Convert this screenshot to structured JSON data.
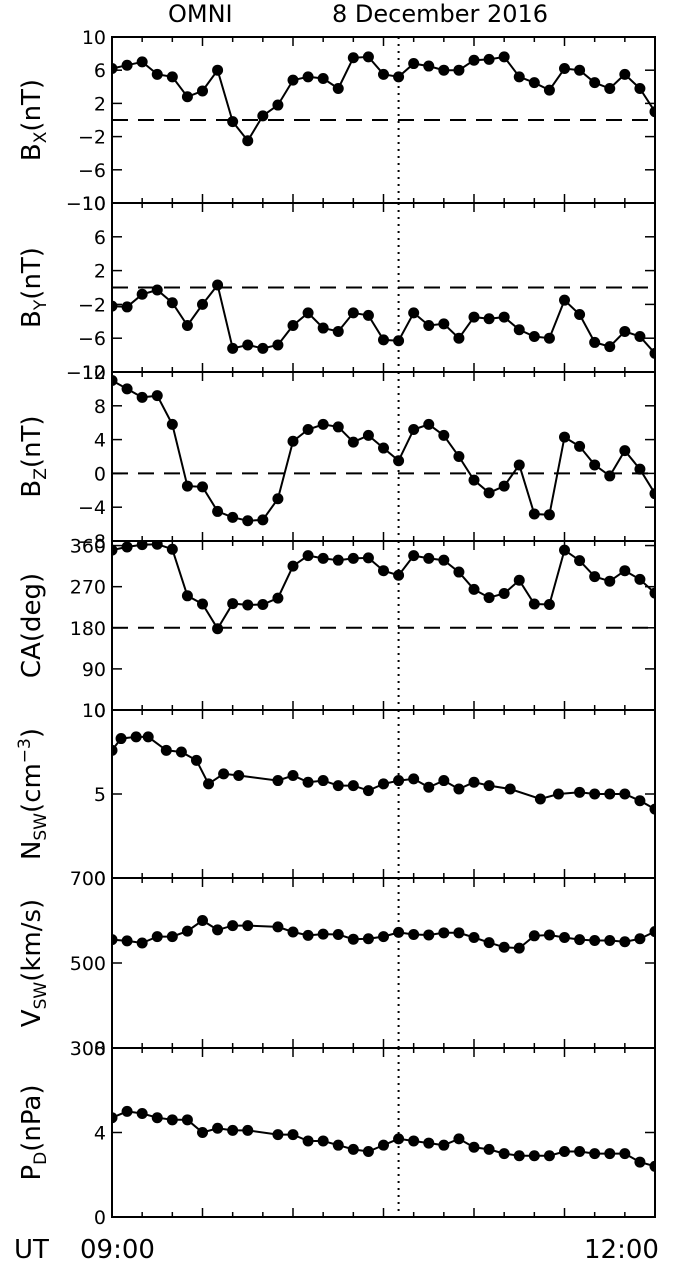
{
  "header": {
    "left": "OMNI",
    "right": "8 December 2016"
  },
  "xaxis": {
    "unit_label": "UT",
    "start_label": "09:00",
    "end_label": "12:00",
    "range_min": [
      0,
      180
    ]
  },
  "colors": {
    "ink": "#000000",
    "background": "#ffffff"
  },
  "chart_data": [
    {
      "type": "line",
      "ylabel_main": "B",
      "ylabel_sub": "X",
      "ylabel_tail": "(nT)",
      "ylim": [
        -10,
        10
      ],
      "yticks": [
        "10",
        "6",
        "2",
        "−2",
        "−6",
        "−10"
      ],
      "ytick_values": [
        10,
        6,
        2,
        -2,
        -6,
        -10
      ],
      "reference_line": 0,
      "marker_time_min": 95,
      "x": [
        0,
        5,
        10,
        15,
        20,
        25,
        30,
        35,
        40,
        45,
        50,
        55,
        60,
        65,
        70,
        75,
        80,
        85,
        90,
        95,
        100,
        105,
        110,
        115,
        120,
        125,
        130,
        135,
        140,
        145,
        150,
        155,
        160,
        165,
        170,
        175,
        180
      ],
      "values": [
        6.2,
        6.6,
        7.0,
        5.5,
        5.2,
        2.8,
        3.5,
        6.0,
        -0.2,
        -2.5,
        0.5,
        1.8,
        4.8,
        5.2,
        5.0,
        3.8,
        7.5,
        7.6,
        5.5,
        5.2,
        6.8,
        6.5,
        6.0,
        6.0,
        7.2,
        7.3,
        7.6,
        5.2,
        4.5,
        3.6,
        6.2,
        6.0,
        4.5,
        3.8,
        5.5,
        3.8,
        1.0
      ]
    },
    {
      "type": "line",
      "ylabel_main": "B",
      "ylabel_sub": "Y",
      "ylabel_tail": "(nT)",
      "ylim": [
        -10,
        10
      ],
      "yticks": [
        "10",
        "6",
        "2",
        "−2",
        "−6",
        "−10"
      ],
      "ytick_values": [
        10,
        6,
        2,
        -2,
        -6,
        -10
      ],
      "reference_line": 0,
      "marker_time_min": 95,
      "x": [
        0,
        5,
        10,
        15,
        20,
        25,
        30,
        35,
        40,
        45,
        50,
        55,
        60,
        65,
        70,
        75,
        80,
        85,
        90,
        95,
        100,
        105,
        110,
        115,
        120,
        125,
        130,
        135,
        140,
        145,
        150,
        155,
        160,
        165,
        170,
        175,
        180
      ],
      "values": [
        -2.2,
        -2.3,
        -0.8,
        -0.3,
        -1.8,
        -4.5,
        -2.0,
        0.3,
        -7.2,
        -6.8,
        -7.2,
        -6.8,
        -4.5,
        -3.0,
        -4.8,
        -5.2,
        -3.0,
        -3.3,
        -6.2,
        -6.3,
        -3.0,
        -4.5,
        -4.3,
        -6.0,
        -3.5,
        -3.7,
        -3.5,
        -5.0,
        -5.8,
        -6.0,
        -1.5,
        -3.2,
        -6.5,
        -7.0,
        -5.2,
        -5.8,
        -7.8
      ]
    },
    {
      "type": "line",
      "ylabel_main": "B",
      "ylabel_sub": "Z",
      "ylabel_tail": "(nT)",
      "ylim": [
        -8,
        12
      ],
      "yticks": [
        "12",
        "8",
        "4",
        "0",
        "−4",
        "−8"
      ],
      "ytick_values": [
        12,
        8,
        4,
        0,
        -4,
        -8
      ],
      "reference_line": 0,
      "marker_time_min": 95,
      "x": [
        0,
        5,
        10,
        15,
        20,
        25,
        30,
        35,
        40,
        45,
        50,
        55,
        60,
        65,
        70,
        75,
        80,
        85,
        90,
        95,
        100,
        105,
        110,
        115,
        120,
        125,
        130,
        135,
        140,
        145,
        150,
        155,
        160,
        165,
        170,
        175,
        180
      ],
      "values": [
        11.0,
        10.0,
        9.0,
        9.2,
        5.8,
        -1.5,
        -1.6,
        -4.5,
        -5.2,
        -5.6,
        -5.5,
        -3.0,
        3.8,
        5.2,
        5.8,
        5.5,
        3.7,
        4.5,
        3.0,
        1.5,
        5.2,
        5.8,
        4.5,
        2.0,
        -0.8,
        -2.3,
        -1.5,
        1.0,
        -4.8,
        -4.9,
        4.3,
        3.2,
        1.0,
        -0.3,
        2.7,
        0.5,
        -2.4
      ]
    },
    {
      "type": "line",
      "ylabel_main": "CA",
      "ylabel_sub": "",
      "ylabel_tail": "(deg)",
      "ylim": [
        0,
        370
      ],
      "yticks": [
        "360",
        "270",
        "180",
        "90",
        "0"
      ],
      "ytick_values": [
        360,
        270,
        180,
        90,
        0
      ],
      "reference_line": 180,
      "marker_time_min": 95,
      "x": [
        0,
        5,
        10,
        15,
        20,
        25,
        30,
        35,
        40,
        45,
        50,
        55,
        60,
        65,
        70,
        75,
        80,
        85,
        90,
        95,
        100,
        105,
        110,
        115,
        120,
        125,
        130,
        135,
        140,
        145,
        150,
        155,
        160,
        165,
        170,
        175,
        180
      ],
      "values": [
        350,
        357,
        362,
        363,
        352,
        250,
        232,
        178,
        233,
        230,
        231,
        245,
        315,
        338,
        332,
        328,
        332,
        333,
        305,
        295,
        338,
        332,
        328,
        302,
        264,
        246,
        255,
        284,
        232,
        231,
        350,
        327,
        292,
        282,
        305,
        286,
        256
      ]
    },
    {
      "type": "line",
      "ylabel_main": "N",
      "ylabel_sub": "SW",
      "ylabel_tail": "(cm",
      "ylabel_sup": "−3",
      "ylabel_close": ")",
      "ylim": [
        0,
        10
      ],
      "yticks": [
        "10",
        "5",
        "0"
      ],
      "ytick_values": [
        10,
        5,
        0
      ],
      "reference_line": null,
      "marker_time_min": 95,
      "x": [
        0,
        3,
        8,
        12,
        18,
        23,
        28,
        32,
        37,
        42,
        55,
        60,
        65,
        70,
        75,
        80,
        85,
        90,
        95,
        100,
        105,
        110,
        115,
        120,
        125,
        132,
        142,
        148,
        155,
        160,
        165,
        170,
        175,
        180
      ],
      "values": [
        7.6,
        8.3,
        8.4,
        8.4,
        7.6,
        7.5,
        7.0,
        5.6,
        6.2,
        6.1,
        5.8,
        6.1,
        5.7,
        5.8,
        5.5,
        5.5,
        5.2,
        5.6,
        5.8,
        5.9,
        5.4,
        5.8,
        5.3,
        5.7,
        5.5,
        5.3,
        4.7,
        5.0,
        5.1,
        5.0,
        5.0,
        5.0,
        4.6,
        4.1
      ]
    },
    {
      "type": "line",
      "ylabel_main": "V",
      "ylabel_sub": "SW",
      "ylabel_tail": "(km/s)",
      "ylim": [
        300,
        700
      ],
      "yticks": [
        "700",
        "500",
        "300"
      ],
      "ytick_values": [
        700,
        500,
        300
      ],
      "reference_line": null,
      "marker_time_min": 95,
      "x": [
        0,
        5,
        10,
        15,
        20,
        25,
        30,
        35,
        40,
        45,
        55,
        60,
        65,
        70,
        75,
        80,
        85,
        90,
        95,
        100,
        105,
        110,
        115,
        120,
        125,
        130,
        135,
        140,
        145,
        150,
        155,
        160,
        165,
        170,
        175,
        180
      ],
      "values": [
        555,
        552,
        547,
        562,
        562,
        575,
        600,
        578,
        588,
        588,
        585,
        573,
        565,
        568,
        567,
        556,
        557,
        562,
        572,
        567,
        566,
        571,
        571,
        560,
        548,
        537,
        535,
        564,
        566,
        560,
        555,
        553,
        553,
        550,
        557,
        574
      ]
    },
    {
      "type": "line",
      "ylabel_main": "P",
      "ylabel_sub": "D",
      "ylabel_tail": "(nPa)",
      "ylim": [
        0,
        8
      ],
      "yticks": [
        "8",
        "4",
        "0"
      ],
      "ytick_values": [
        8,
        4,
        0
      ],
      "reference_line": null,
      "marker_time_min": 95,
      "x": [
        0,
        5,
        10,
        15,
        20,
        25,
        30,
        35,
        40,
        45,
        55,
        60,
        65,
        70,
        75,
        80,
        85,
        90,
        95,
        100,
        105,
        110,
        115,
        120,
        125,
        130,
        135,
        140,
        145,
        150,
        155,
        160,
        165,
        170,
        175,
        180
      ],
      "values": [
        4.7,
        5.0,
        4.9,
        4.7,
        4.6,
        4.6,
        4.0,
        4.2,
        4.1,
        4.1,
        3.9,
        3.9,
        3.6,
        3.6,
        3.4,
        3.2,
        3.1,
        3.4,
        3.7,
        3.6,
        3.5,
        3.4,
        3.7,
        3.3,
        3.2,
        3.0,
        2.9,
        2.9,
        2.9,
        3.1,
        3.1,
        3.0,
        3.0,
        3.0,
        2.6,
        2.4
      ]
    }
  ]
}
